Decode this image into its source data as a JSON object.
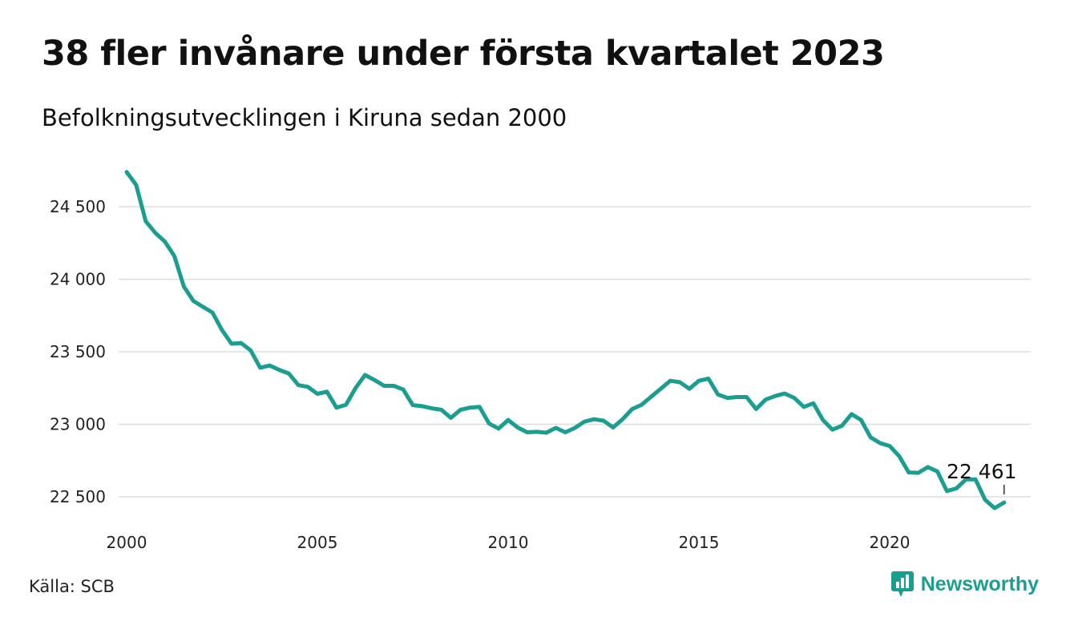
{
  "title": "38 fler invånare under första kvartalet 2023",
  "subtitle": "Befolkningsutvecklingen i Kiruna sedan 2000",
  "source": "Källa: SCB",
  "brand": "Newsworthy",
  "colors": {
    "line": "#1a9e8f",
    "grid": "#dddddd",
    "brand": "#1a9e8f"
  },
  "chart_data": {
    "type": "line",
    "title": "38 fler invånare under första kvartalet 2023",
    "subtitle": "Befolkningsutvecklingen i Kiruna sedan 2000",
    "xlabel": "",
    "ylabel": "",
    "x_ticks": [
      "2000",
      "2005",
      "2010",
      "2015",
      "2020"
    ],
    "y_ticks": [
      "22 500",
      "23 000",
      "23 500",
      "24 000",
      "24 500"
    ],
    "xlim": [
      "2000-01",
      "2023-12"
    ],
    "ylim": [
      22400,
      24800
    ],
    "grid": "horizontal",
    "legend": "none",
    "annotation": {
      "label": "22 461",
      "x": "2023-Q1",
      "y": 22461
    },
    "series": [
      {
        "x": [
          "2000-Q1",
          "2000-Q2",
          "2000-Q3",
          "2000-Q4",
          "2001-Q1",
          "2001-Q2",
          "2001-Q3",
          "2001-Q4",
          "2002-Q1",
          "2002-Q2",
          "2002-Q3",
          "2002-Q4",
          "2003-Q1",
          "2003-Q2",
          "2003-Q3",
          "2003-Q4",
          "2004-Q1",
          "2004-Q2",
          "2004-Q3",
          "2004-Q4",
          "2005-Q1",
          "2005-Q2",
          "2005-Q3",
          "2005-Q4",
          "2006-Q1",
          "2006-Q2",
          "2006-Q3",
          "2006-Q4",
          "2007-Q1",
          "2007-Q2",
          "2007-Q3",
          "2007-Q4",
          "2008-Q1",
          "2008-Q2",
          "2008-Q3",
          "2008-Q4",
          "2009-Q1",
          "2009-Q2",
          "2009-Q3",
          "2009-Q4",
          "2010-Q1",
          "2010-Q2",
          "2010-Q3",
          "2010-Q4",
          "2011-Q1",
          "2011-Q2",
          "2011-Q3",
          "2011-Q4",
          "2012-Q1",
          "2012-Q2",
          "2012-Q3",
          "2012-Q4",
          "2013-Q1",
          "2013-Q2",
          "2013-Q3",
          "2013-Q4",
          "2014-Q1",
          "2014-Q2",
          "2014-Q3",
          "2014-Q4",
          "2015-Q1",
          "2015-Q2",
          "2015-Q3",
          "2015-Q4",
          "2016-Q1",
          "2016-Q2",
          "2016-Q3",
          "2016-Q4",
          "2017-Q1",
          "2017-Q2",
          "2017-Q3",
          "2017-Q4",
          "2018-Q1",
          "2018-Q2",
          "2018-Q3",
          "2018-Q4",
          "2019-Q1",
          "2019-Q2",
          "2019-Q3",
          "2019-Q4",
          "2020-Q1",
          "2020-Q2",
          "2020-Q3",
          "2020-Q4",
          "2021-Q1",
          "2021-Q2",
          "2021-Q3",
          "2021-Q4",
          "2022-Q1",
          "2022-Q2",
          "2022-Q3",
          "2022-Q4",
          "2023-Q1"
        ],
        "values": [
          24740,
          24650,
          24400,
          24320,
          24260,
          24160,
          23950,
          23850,
          23810,
          23770,
          23650,
          23555,
          23560,
          23510,
          23390,
          23405,
          23375,
          23350,
          23270,
          23258,
          23210,
          23225,
          23115,
          23135,
          23250,
          23340,
          23305,
          23265,
          23265,
          23240,
          23132,
          23125,
          23110,
          23100,
          23045,
          23100,
          23115,
          23120,
          23005,
          22970,
          23030,
          22978,
          22945,
          22948,
          22942,
          22975,
          22945,
          22975,
          23018,
          23035,
          23025,
          22978,
          23035,
          23105,
          23135,
          23190,
          23245,
          23300,
          23290,
          23245,
          23300,
          23315,
          23205,
          23182,
          23188,
          23188,
          23105,
          23170,
          23195,
          23212,
          23182,
          23120,
          23145,
          23030,
          22963,
          22990,
          23070,
          23030,
          22910,
          22870,
          22850,
          22780,
          22668,
          22665,
          22705,
          22675,
          22540,
          22558,
          22620,
          22620,
          22480,
          22422,
          22461
        ]
      }
    ]
  }
}
